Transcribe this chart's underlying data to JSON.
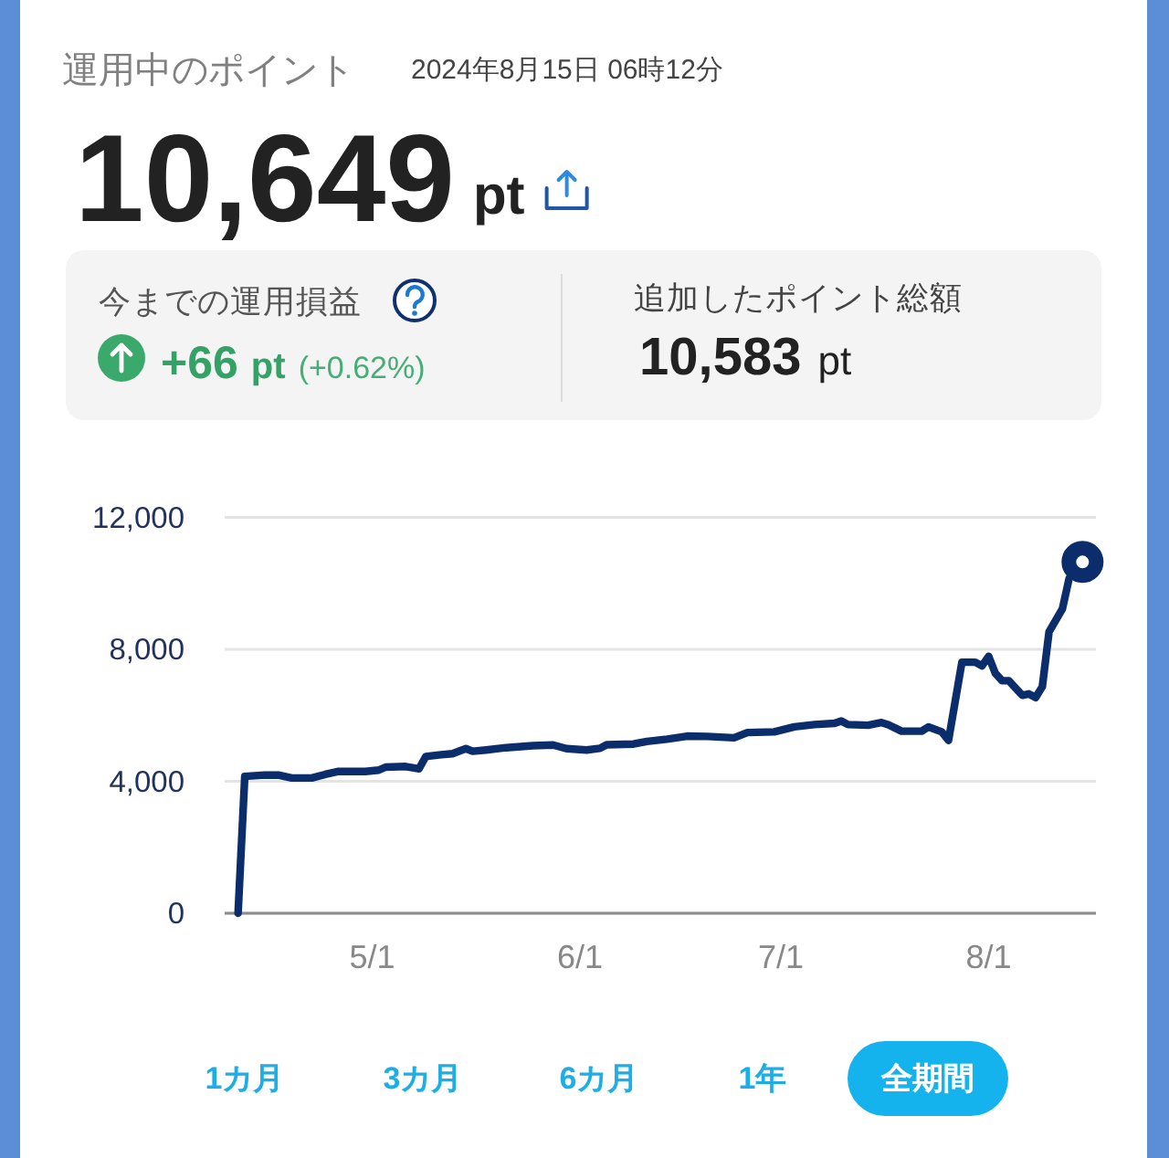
{
  "chart_data": {
    "type": "line",
    "title": "運用中のポイント",
    "subtitle": "2024年8月15日 06時12分",
    "annotations": [
      "10,649",
      "pt",
      "今までの運用損益",
      "+66",
      "pt",
      "(+0.62%)",
      "追加したポイント総額",
      "10,583",
      "pt",
      "1カ月",
      "3カ月",
      "6カ月",
      "1年",
      "全期間"
    ],
    "series": [
      {
        "type": "line",
        "color": "#0b2d6b",
        "x": [
          "2024-04-11",
          "2024-04-12",
          "2024-04-15",
          "2024-04-17",
          "2024-04-19",
          "2024-04-22",
          "2024-04-24",
          "2024-04-26",
          "2024-04-30",
          "2024-05-02",
          "2024-05-03",
          "2024-05-06",
          "2024-05-08",
          "2024-05-09",
          "2024-05-11",
          "2024-05-13",
          "2024-05-15",
          "2024-05-16",
          "2024-05-18",
          "2024-05-21",
          "2024-05-25",
          "2024-05-28",
          "2024-05-30",
          "2024-06-02",
          "2024-06-04",
          "2024-06-05",
          "2024-06-09",
          "2024-06-11",
          "2024-06-14",
          "2024-06-17",
          "2024-06-20",
          "2024-06-24",
          "2024-06-26",
          "2024-06-30",
          "2024-07-03",
          "2024-07-06",
          "2024-07-09",
          "2024-07-10",
          "2024-07-11",
          "2024-07-14",
          "2024-07-16",
          "2024-07-17",
          "2024-07-19",
          "2024-07-22",
          "2024-07-23",
          "2024-07-25",
          "2024-07-26",
          "2024-07-28",
          "2024-07-30",
          "2024-07-31",
          "2024-08-01",
          "2024-08-02",
          "2024-08-03",
          "2024-08-04",
          "2024-08-06",
          "2024-08-07",
          "2024-08-08",
          "2024-08-09",
          "2024-08-10",
          "2024-08-12",
          "2024-08-13",
          "2024-08-15"
        ],
        "values": [
          0,
          4150,
          4190,
          4190,
          4100,
          4100,
          4210,
          4300,
          4300,
          4340,
          4430,
          4450,
          4380,
          4750,
          4800,
          4840,
          4990,
          4910,
          4950,
          5020,
          5080,
          5100,
          4990,
          4950,
          5000,
          5110,
          5130,
          5210,
          5280,
          5370,
          5360,
          5320,
          5480,
          5500,
          5650,
          5720,
          5760,
          5830,
          5720,
          5700,
          5780,
          5720,
          5520,
          5520,
          5650,
          5500,
          5240,
          7610,
          7610,
          7500,
          7790,
          7270,
          7050,
          7050,
          6610,
          6650,
          6540,
          6870,
          8530,
          9230,
          10150,
          10650
        ]
      },
      {
        "type": "scatter",
        "color": "#0b2d6b",
        "marker": "circle",
        "x": [
          "2024-08-15"
        ],
        "values": [
          10650
        ]
      }
    ],
    "xlim": [
      "2024-04-09",
      "2024-08-17"
    ],
    "xticks": [
      {
        "value": "2024-05-01",
        "label": "5/1"
      },
      {
        "value": "2024-06-01",
        "label": "6/1"
      },
      {
        "value": "2024-07-01",
        "label": "7/1"
      },
      {
        "value": "2024-08-01",
        "label": "8/1"
      }
    ],
    "ylim": [
      0,
      12000
    ],
    "yticks": [
      0,
      {
        "value": 4000,
        "label": "4,000"
      },
      {
        "value": 8000,
        "label": "8,000"
      },
      {
        "value": 12000,
        "label": "12,000"
      }
    ],
    "grid": "y",
    "line_style": "solid"
  }
}
